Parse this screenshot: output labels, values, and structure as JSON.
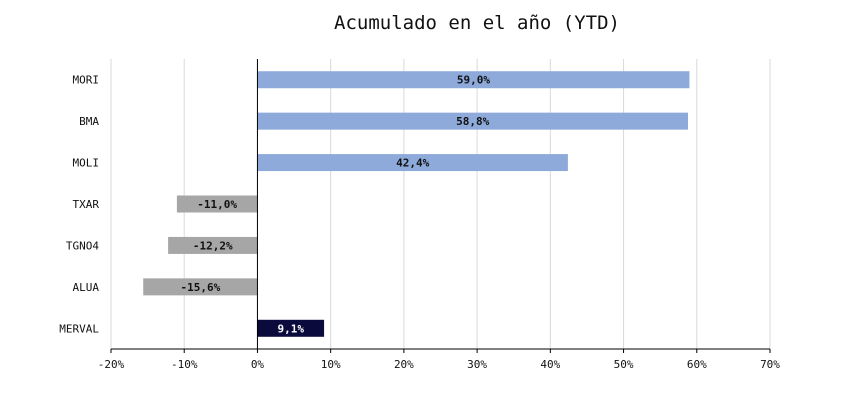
{
  "chart_data": {
    "type": "bar",
    "orientation": "horizontal",
    "title": "Acumulado en el año (YTD)",
    "xlabel": "",
    "ylabel": "",
    "xlim": [
      -20,
      70
    ],
    "x_ticks": [
      -20,
      -10,
      0,
      10,
      20,
      30,
      40,
      50,
      60,
      70
    ],
    "x_tick_labels": [
      "-20%",
      "-10%",
      "0%",
      "10%",
      "20%",
      "30%",
      "40%",
      "50%",
      "60%",
      "70%"
    ],
    "grid": "vertical",
    "categories": [
      "MORI",
      "BMA",
      "MOLI",
      "TXAR",
      "TGNO4",
      "ALUA",
      "MERVAL"
    ],
    "values": [
      59.0,
      58.8,
      42.4,
      -11.0,
      -12.2,
      -15.6,
      9.1
    ],
    "data_labels": [
      "59,0%",
      "58,8%",
      "42,4%",
      "-11,0%",
      "-12,2%",
      "-15,6%",
      "9,1%"
    ],
    "colors": {
      "positive": "#8eaadb",
      "negative": "#a6a6a6",
      "index": "#0a0a3c",
      "grid": "#d9d9d9",
      "axis": "#000000",
      "label_dark": "#111111",
      "label_light": "#ffffff"
    },
    "highlight_category": "MERVAL"
  }
}
